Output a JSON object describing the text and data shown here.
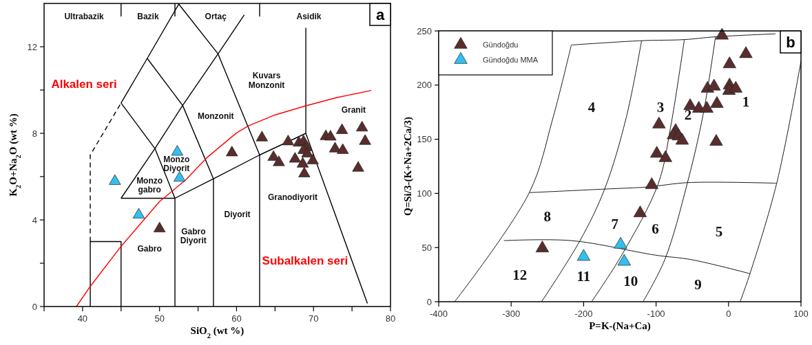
{
  "chart_data": [
    {
      "type": "scatter",
      "title": "a",
      "xlabel": "SiO$_{2}$ (wt %)",
      "ylabel": "K$_{2}$O+Na$_{2}$O (wt %)",
      "xlim": [
        35,
        80
      ],
      "ylim": [
        0,
        14
      ],
      "xticks": [
        {
          "value": 35,
          "label": null
        },
        40,
        {
          "value": 45,
          "label": null
        },
        50,
        {
          "value": 55,
          "label": null
        },
        60,
        {
          "value": 65,
          "label": null
        },
        70,
        {
          "value": 75,
          "label": null
        },
        80
      ],
      "yticks": [
        0,
        {
          "value": 2,
          "label": null
        },
        4,
        {
          "value": 6,
          "label": null
        },
        8,
        {
          "value": 10,
          "label": null
        },
        12
      ],
      "grid": false,
      "legend": false,
      "series": [
        {
          "type": "line",
          "color": "#000000",
          "x": [
            41,
            41,
            45
          ],
          "values": [
            3,
            7,
            9.4
          ],
          "line_style": "dashed"
        },
        {
          "type": "line",
          "color": "#000000",
          "x": [
            41,
            41,
            45,
            45
          ],
          "values": [
            0,
            3,
            3,
            0
          ]
        },
        {
          "type": "line",
          "color": "#000000",
          "x": [
            45,
            52,
            52
          ],
          "values": [
            5,
            5,
            0
          ]
        },
        {
          "type": "line",
          "color": "#000000",
          "x": [
            52,
            57,
            57
          ],
          "values": [
            5,
            5.9,
            0
          ]
        },
        {
          "type": "line",
          "color": "#000000",
          "x": [
            57,
            63,
            63
          ],
          "values": [
            5.9,
            7,
            0
          ]
        },
        {
          "type": "line",
          "color": "#000000",
          "x": [
            63,
            69,
            77
          ],
          "values": [
            7,
            8,
            0.14
          ]
        },
        {
          "type": "line",
          "color": "#000000",
          "x": [
            69,
            69
          ],
          "values": [
            8,
            12.87
          ]
        },
        {
          "type": "line",
          "color": "#000000",
          "x": [
            45,
            48.4,
            52.5,
            57.6,
            63
          ],
          "values": [
            9.4,
            11.46,
            13.97,
            11.67,
            7
          ]
        },
        {
          "type": "line",
          "color": "#000000",
          "x": [
            45,
            49.4,
            52
          ],
          "values": [
            9.4,
            7.3,
            5
          ]
        },
        {
          "type": "line",
          "color": "#000000",
          "x": [
            48.4,
            53,
            57
          ],
          "values": [
            11.46,
            9.29,
            5.9
          ]
        },
        {
          "type": "line",
          "color": "#000000",
          "x": [
            45,
            49.4,
            53,
            57.6,
            61
          ],
          "values": [
            5,
            7.3,
            9.29,
            11.67,
            13.47
          ]
        },
        {
          "type": "line",
          "color": "#000000",
          "x": [
            45,
            45
          ],
          "values": [
            13.4,
            14
          ]
        },
        {
          "type": "line",
          "color": "#000000",
          "x": [
            52,
            52
          ],
          "values": [
            13.4,
            14
          ]
        },
        {
          "type": "line",
          "color": "#000000",
          "x": [
            63,
            63
          ],
          "values": [
            13.4,
            14
          ]
        },
        {
          "type": "line",
          "color": "#ff0000",
          "x": [
            39.2,
            41,
            45,
            50,
            53.4,
            56.1,
            60,
            61.5,
            65,
            69,
            73,
            77.5
          ],
          "values": [
            0,
            0.93,
            2.78,
            4.85,
            5.85,
            6.86,
            8.02,
            8.34,
            8.85,
            9.27,
            9.65,
            9.98
          ]
        },
        {
          "type": "scatter",
          "color": "#5a2d2d",
          "marker": "triangle",
          "x": [
            50.0,
            59.4,
            63.3,
            66.7,
            64.8,
            65.5,
            67.6,
            68.1,
            68.7,
            69.1,
            68.7,
            69.2,
            68.6,
            68.8,
            69.9,
            71.6,
            72.2,
            73.7,
            76.3,
            76.7,
            72.8,
            73.8,
            75.8
          ],
          "values": [
            3.66,
            7.17,
            7.86,
            7.68,
            6.96,
            6.72,
            6.88,
            7.62,
            7.68,
            7.41,
            7.28,
            7.12,
            6.65,
            6.2,
            6.8,
            7.92,
            7.9,
            8.2,
            8.32,
            7.7,
            7.35,
            7.28,
            6.46
          ]
        },
        {
          "type": "scatter",
          "color": "#33bfef",
          "marker": "triangle",
          "x": [
            44.2,
            52.3,
            52.6,
            47.3
          ],
          "values": [
            5.85,
            7.2,
            6.0,
            4.3
          ]
        }
      ],
      "annotations": [
        "Ultrabazik",
        "Bazik",
        "Ortaç",
        "Asidik",
        "Alkalen seri",
        "Kuvars\nMonzonit",
        "Monzonit",
        "Granit",
        "Monzo\nDiyorit",
        "Monzo\ngabro",
        "Granodiyorit",
        "Diyorit",
        "Gabro\nDiyorit",
        "Gabro",
        "Subalkalen seri"
      ]
    },
    {
      "type": "scatter",
      "title": "b",
      "xlabel": "P=K-(Na+Ca)",
      "ylabel": "Q=Si/3-(K+Na+2Ca/3)",
      "xlim": [
        -400,
        100
      ],
      "ylim": [
        0,
        250
      ],
      "xticks": [
        -400,
        -300,
        -200,
        -100,
        0,
        100
      ],
      "yticks": [
        0,
        50,
        100,
        150,
        200,
        250
      ],
      "grid": false,
      "legend": "top left",
      "series": [
        {
          "type": "line",
          "color": "#000000",
          "x": [
            -217,
            -120,
            -61,
            -18,
            65
          ],
          "values": [
            237,
            241,
            242,
            244.6,
            247.3
          ]
        },
        {
          "type": "line",
          "color": "#000000",
          "x": [
            -378,
            -275,
            -243,
            -217
          ],
          "values": [
            0,
            100.7,
            168,
            237
          ]
        },
        {
          "type": "line",
          "color": "#000000",
          "x": [
            -275,
            -171,
            -111,
            -55,
            66.5
          ],
          "values": [
            100.7,
            104,
            106,
            110,
            109.4
          ]
        },
        {
          "type": "line",
          "color": "#000000",
          "x": [
            -310,
            -217,
            -101,
            -51,
            29.6
          ],
          "values": [
            56.4,
            56.4,
            43,
            38.8,
            25.9
          ]
        },
        {
          "type": "line",
          "color": "#000000",
          "x": [
            -258,
            -205,
            -171,
            -141,
            -120
          ],
          "values": [
            0,
            56.4,
            104,
            170.5,
            241
          ]
        },
        {
          "type": "line",
          "color": "#000000",
          "x": [
            -189,
            -147,
            -97,
            -80,
            -61
          ],
          "values": [
            0,
            43.5,
            109,
            161,
            242
          ]
        },
        {
          "type": "line",
          "color": "#000000",
          "x": [
            -118,
            -88,
            -57,
            -35,
            -18
          ],
          "values": [
            0,
            38.8,
            109,
            173,
            244.6
          ]
        },
        {
          "type": "line",
          "color": "#000000",
          "x": [
            16,
            29.6,
            66.5,
            100
          ],
          "values": [
            0,
            25.9,
            109.4,
            222
          ]
        },
        {
          "type": "scatter",
          "name": "Gündoğdu",
          "color": "#5a2d2d",
          "marker": "triangle",
          "x": [
            -9,
            24,
            1.4,
            -29,
            -20,
            1.4,
            0.7,
            10,
            -53,
            -41,
            -30,
            -16,
            -96,
            -73,
            -76,
            -69,
            -64,
            -17,
            -99,
            -87,
            -106,
            -122,
            -257
          ],
          "values": [
            247,
            230,
            220.6,
            198,
            200,
            201,
            196,
            198,
            182,
            179.5,
            179.5,
            184,
            165,
            159,
            155,
            154,
            150,
            149,
            138,
            134,
            109,
            83,
            50.6
          ]
        },
        {
          "type": "scatter",
          "name": "Gündoğdu MMA",
          "color": "#33bfef",
          "marker": "triangle",
          "x": [
            -200,
            -149,
            -144
          ],
          "values": [
            42.8,
            54,
            38.3
          ]
        }
      ],
      "annotations": [
        "1",
        "2",
        "3",
        "4",
        "5",
        "6",
        "7",
        "8",
        "9",
        "10",
        "11",
        "12"
      ]
    }
  ]
}
